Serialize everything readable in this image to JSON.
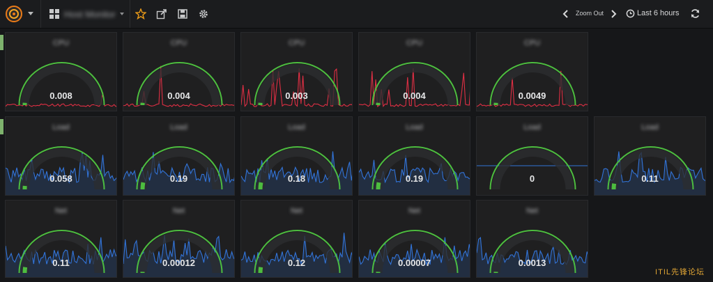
{
  "toolbar": {
    "dashboard_title": "Host Monitor",
    "zoom_out_label": "Zoom Out",
    "time_range_label": "Last 6 hours"
  },
  "icons": {
    "logo": "grafana-logo-icon",
    "dashboards": "grid-icon",
    "star": "star-icon",
    "share": "share-icon",
    "save": "save-icon",
    "settings": "gear-icon",
    "zoom_prev": "chevron-left-icon",
    "zoom_next": "chevron-right-icon",
    "clock": "clock-icon",
    "refresh": "refresh-icon"
  },
  "colors": {
    "accent_orange": "#eb7b18",
    "gauge_green": "#4dbd3f",
    "sparkline_red": "#e02f44",
    "sparkline_blue": "#3274d9",
    "row_marker": "#7eb26d"
  },
  "rows": [
    {
      "sparkline": "red",
      "panels": [
        {
          "title": "CPU",
          "value": "0.008",
          "level": 0.02
        },
        {
          "title": "CPU",
          "value": "0.004",
          "level": 0.02
        },
        {
          "title": "CPU",
          "value": "0.003",
          "level": 0.02
        },
        {
          "title": "CPU",
          "value": "0.004",
          "level": 0.02
        },
        {
          "title": "CPU",
          "value": "0.0049",
          "level": 0.02
        }
      ]
    },
    {
      "sparkline": "blue",
      "panels": [
        {
          "title": "Load",
          "value": "0.058",
          "level": 0.03
        },
        {
          "title": "Load",
          "value": "0.19",
          "level": 0.06
        },
        {
          "title": "Load",
          "value": "0.18",
          "level": 0.06
        },
        {
          "title": "Load",
          "value": "0.19",
          "level": 0.06
        },
        {
          "title": "Load",
          "value": "0",
          "level": 0
        },
        {
          "title": "Load",
          "value": "0.11",
          "level": 0.05
        }
      ]
    },
    {
      "sparkline": "blue",
      "panels": [
        {
          "title": "Net",
          "value": "0.11",
          "level": 0.05
        },
        {
          "title": "Net",
          "value": "0.00012",
          "level": 0.01
        },
        {
          "title": "Net",
          "value": "0.12",
          "level": 0.05
        },
        {
          "title": "Net",
          "value": "0.00007",
          "level": 0.01
        },
        {
          "title": "Net",
          "value": "0.0013",
          "level": 0.01
        }
      ]
    }
  ],
  "watermark": "ITIL先锋论坛"
}
